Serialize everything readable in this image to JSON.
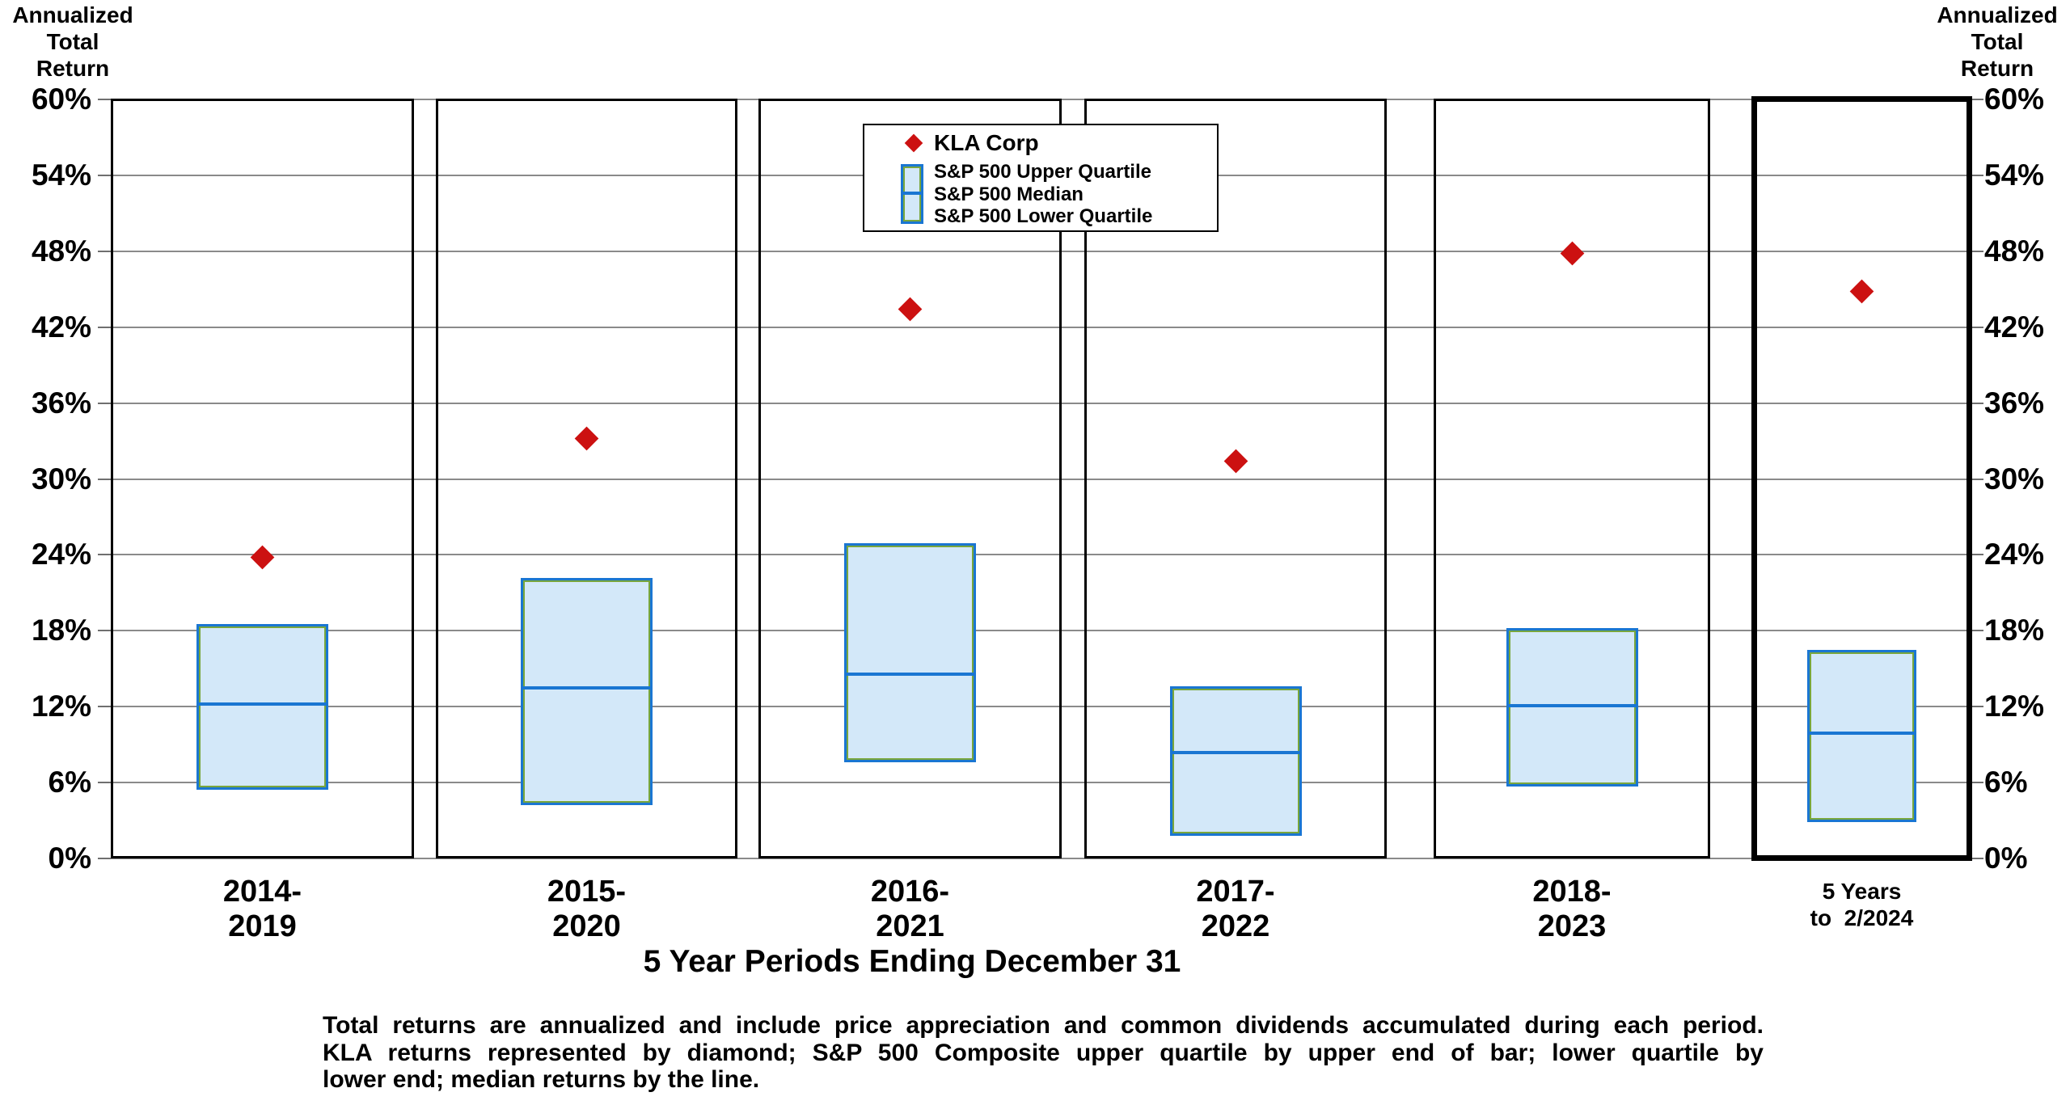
{
  "chart_data": {
    "type": "box-and-scatter",
    "ylabel": "Annualized Total Return",
    "xlabel": "5 Year Periods Ending December 31",
    "y_axis_label_lines": [
      "Annualized",
      "Total",
      "Return"
    ],
    "ylim": [
      0,
      60
    ],
    "y_ticks": [
      0,
      6,
      12,
      18,
      24,
      30,
      36,
      42,
      48,
      54,
      60
    ],
    "y_tick_suffix": "%",
    "grid": true,
    "legend_position": "top-center",
    "categories": [
      "2014-2019",
      "2015-2020",
      "2016-2021",
      "2017-2022",
      "2018-2023",
      "5 Years to 2/2024"
    ],
    "category_label_lines": [
      [
        "2014-",
        "2019"
      ],
      [
        "2015-",
        "2020"
      ],
      [
        "2016-",
        "2021"
      ],
      [
        "2017-",
        "2022"
      ],
      [
        "2018-",
        "2023"
      ],
      [
        "5 Years",
        "to  2/2024"
      ]
    ],
    "highlighted_category_index": 5,
    "series": [
      {
        "name": "KLA Corp",
        "marker": "diamond",
        "values": [
          23.8,
          33.2,
          43.4,
          31.4,
          47.8,
          44.8
        ]
      },
      {
        "name": "S&P 500 Upper Quartile",
        "marker": "box-top",
        "values": [
          18.5,
          22.2,
          24.9,
          13.6,
          18.2,
          16.5
        ]
      },
      {
        "name": "S&P 500 Median",
        "marker": "box-line",
        "values": [
          12.2,
          13.5,
          14.6,
          8.4,
          12.1,
          9.9
        ]
      },
      {
        "name": "S&P 500 Lower Quartile",
        "marker": "box-bottom",
        "values": [
          5.4,
          4.2,
          7.6,
          1.8,
          5.7,
          2.9
        ]
      }
    ]
  },
  "footnote": {
    "lines": [
      "Total returns are annualized and include price appreciation and common dividends accumulated during each period.",
      "KLA returns represented by diamond; S&P 500 Composite upper quartile by upper end of bar; lower quartile by",
      "lower end; median returns by the line."
    ]
  },
  "colors": {
    "kla_red": "#cc1111",
    "box_fill": "#d3e8f9",
    "box_border_blue": "#1a76d2",
    "box_inner_outline_green": "#79a63c",
    "gridline_gray": "#8a8a8a",
    "panel_border_black": "#000000"
  }
}
